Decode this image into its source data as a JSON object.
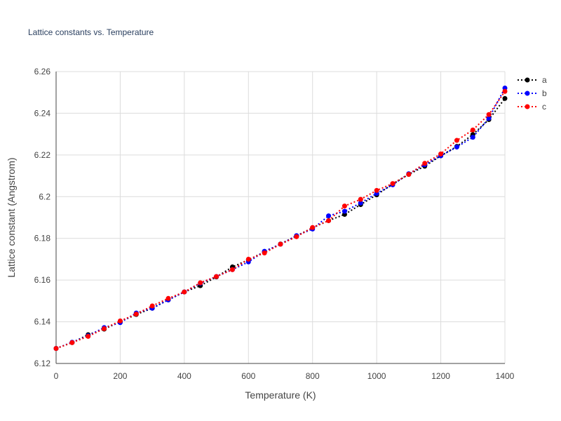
{
  "chart_data": {
    "type": "line",
    "title": "Lattice constants vs. Temperature",
    "xlabel": "Temperature (K)",
    "ylabel": "Lattice constant (Angstrom)",
    "xlim": [
      0,
      1400
    ],
    "ylim": [
      6.12,
      6.26
    ],
    "x_ticks": [
      0,
      200,
      400,
      600,
      800,
      1000,
      1200,
      1400
    ],
    "x_tick_labels": [
      "0",
      "200",
      "400",
      "600",
      "800",
      "1000",
      "1200",
      "1400"
    ],
    "y_ticks": [
      6.12,
      6.14,
      6.16,
      6.18,
      6.2,
      6.22,
      6.24,
      6.26
    ],
    "y_tick_labels": [
      "6.12",
      "6.14",
      "6.16",
      "6.18",
      "6.2",
      "6.22",
      "6.24",
      "6.26"
    ],
    "grid": true,
    "legend_position": "top-right",
    "line_style": "dotted",
    "markers": true,
    "x": [
      0,
      50,
      100,
      150,
      200,
      250,
      300,
      350,
      400,
      450,
      500,
      550,
      600,
      650,
      700,
      750,
      800,
      850,
      900,
      950,
      1000,
      1050,
      1100,
      1150,
      1200,
      1250,
      1300,
      1350,
      1400
    ],
    "series": [
      {
        "name": "a",
        "color": "#000000",
        "values": [
          6.1272,
          6.13,
          6.1338,
          6.1365,
          6.14,
          6.1435,
          6.1465,
          6.1505,
          6.1543,
          6.1573,
          6.1615,
          6.1663,
          6.1697,
          6.1735,
          6.1773,
          6.1812,
          6.1851,
          6.1885,
          6.1915,
          6.1962,
          6.2009,
          6.206,
          6.2107,
          6.2146,
          6.2196,
          6.2241,
          6.2298,
          6.237,
          6.2471
        ]
      },
      {
        "name": "b",
        "color": "#0000ff",
        "values": [
          6.1272,
          6.1302,
          6.1333,
          6.1372,
          6.1396,
          6.1442,
          6.1465,
          6.1505,
          6.1543,
          6.1585,
          6.1617,
          6.165,
          6.1687,
          6.1738,
          6.1772,
          6.1813,
          6.1845,
          6.1908,
          6.193,
          6.197,
          6.2016,
          6.2057,
          6.211,
          6.2153,
          6.2196,
          6.2238,
          6.2285,
          6.2376,
          6.2521
        ]
      },
      {
        "name": "c",
        "color": "#ff0000",
        "values": [
          6.1272,
          6.13,
          6.133,
          6.1367,
          6.1404,
          6.1437,
          6.1476,
          6.1512,
          6.1543,
          6.1587,
          6.1617,
          6.165,
          6.17,
          6.173,
          6.1772,
          6.1808,
          6.1852,
          6.1885,
          6.1955,
          6.1987,
          6.203,
          6.2063,
          6.2107,
          6.216,
          6.2205,
          6.227,
          6.232,
          6.2394,
          6.2505
        ]
      }
    ]
  }
}
